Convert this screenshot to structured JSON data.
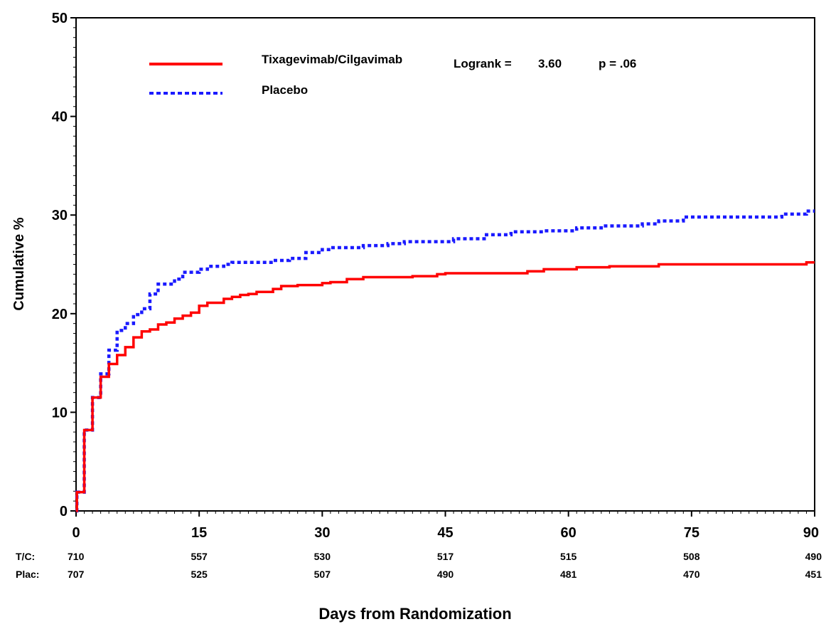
{
  "chart_data": {
    "type": "line",
    "title": "",
    "xlabel": "Days from Randomization",
    "ylabel": "Cumulative %",
    "xlim": [
      0,
      90
    ],
    "ylim": [
      0,
      50
    ],
    "x_ticks": [
      "0",
      "15",
      "30",
      "45",
      "60",
      "75",
      "90"
    ],
    "y_ticks": [
      "0",
      "10",
      "20",
      "30",
      "40",
      "50"
    ],
    "grid": false,
    "legend_position": "top-left",
    "annotation": {
      "logrank_label": "Logrank =",
      "logrank_value": "3.60",
      "p_label": "p = .06"
    },
    "series": [
      {
        "name": "Tixagevimab/Cilgavimab",
        "color": "#ff0000",
        "style": "solid",
        "step_points": [
          [
            0,
            0
          ],
          [
            0.1,
            1.9
          ],
          [
            1,
            8.2
          ],
          [
            2,
            11.5
          ],
          [
            3,
            13.6
          ],
          [
            4,
            14.9
          ],
          [
            5,
            15.8
          ],
          [
            6,
            16.6
          ],
          [
            7,
            17.6
          ],
          [
            8,
            18.2
          ],
          [
            9,
            18.4
          ],
          [
            10,
            18.9
          ],
          [
            11,
            19.1
          ],
          [
            12,
            19.5
          ],
          [
            13,
            19.8
          ],
          [
            14,
            20.1
          ],
          [
            15,
            20.8
          ],
          [
            16,
            21.1
          ],
          [
            18,
            21.5
          ],
          [
            19,
            21.7
          ],
          [
            20,
            21.9
          ],
          [
            21,
            22.0
          ],
          [
            22,
            22.2
          ],
          [
            24,
            22.5
          ],
          [
            25,
            22.8
          ],
          [
            27,
            22.9
          ],
          [
            30,
            23.1
          ],
          [
            31,
            23.2
          ],
          [
            33,
            23.5
          ],
          [
            35,
            23.7
          ],
          [
            41,
            23.8
          ],
          [
            44,
            24.0
          ],
          [
            45,
            24.1
          ],
          [
            55,
            24.3
          ],
          [
            57,
            24.5
          ],
          [
            61,
            24.7
          ],
          [
            65,
            24.8
          ],
          [
            71,
            25.0
          ],
          [
            89,
            25.2
          ],
          [
            90,
            25.2
          ]
        ]
      },
      {
        "name": "Placebo",
        "color": "#1a1aff",
        "style": "dotted",
        "step_points": [
          [
            0,
            0
          ],
          [
            0.1,
            1.9
          ],
          [
            1,
            8.2
          ],
          [
            2,
            11.5
          ],
          [
            3,
            13.9
          ],
          [
            4,
            16.3
          ],
          [
            5,
            18.3
          ],
          [
            6,
            19.0
          ],
          [
            7,
            19.9
          ],
          [
            8,
            20.5
          ],
          [
            9,
            22.0
          ],
          [
            10,
            23.0
          ],
          [
            12,
            23.5
          ],
          [
            13,
            24.2
          ],
          [
            15,
            24.5
          ],
          [
            16,
            24.8
          ],
          [
            18,
            25.0
          ],
          [
            19,
            25.2
          ],
          [
            24,
            25.4
          ],
          [
            26,
            25.6
          ],
          [
            28,
            26.2
          ],
          [
            30,
            26.5
          ],
          [
            31,
            26.7
          ],
          [
            35,
            26.9
          ],
          [
            38,
            27.1
          ],
          [
            40,
            27.3
          ],
          [
            46,
            27.6
          ],
          [
            50,
            28.0
          ],
          [
            53,
            28.3
          ],
          [
            57,
            28.4
          ],
          [
            61,
            28.7
          ],
          [
            64,
            28.9
          ],
          [
            69,
            29.1
          ],
          [
            71,
            29.4
          ],
          [
            74,
            29.8
          ],
          [
            86,
            30.1
          ],
          [
            89,
            30.4
          ],
          [
            90,
            30.4
          ]
        ]
      }
    ],
    "risk_table": {
      "rows": [
        {
          "label": "T/C:",
          "values": [
            "710",
            "557",
            "530",
            "517",
            "515",
            "508",
            "490"
          ]
        },
        {
          "label": "Plac:",
          "values": [
            "707",
            "525",
            "507",
            "490",
            "481",
            "470",
            "451"
          ]
        }
      ]
    }
  }
}
